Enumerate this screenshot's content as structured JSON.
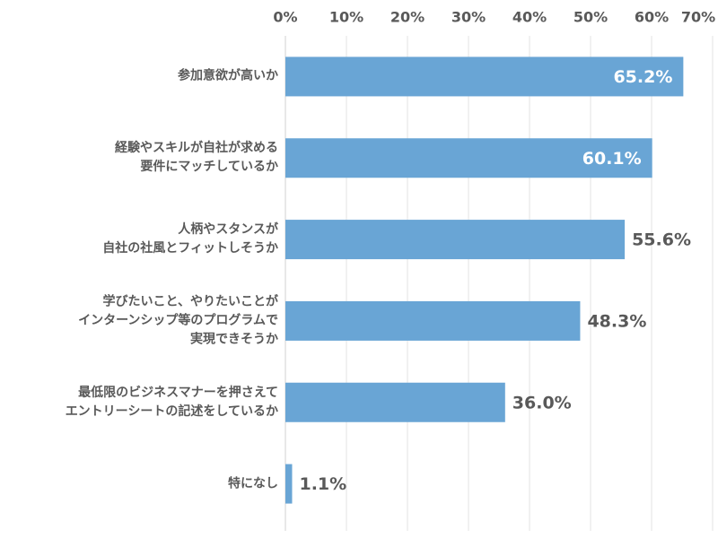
{
  "chart_data": {
    "type": "barh",
    "categories": [
      "参加意欲が高いか",
      "経験やスキルが自社が求める\n要件にマッチしているか",
      "人柄やスタンスが\n自社の社風とフィットしそうか",
      "学びたいこと、やりたいことが\nインターンシップ等のプログラムで\n実現できそうか",
      "最低限のビジネスマナーを押さえて\nエントリーシートの記述をしているか",
      "特になし"
    ],
    "values": [
      65.2,
      60.1,
      55.6,
      48.3,
      36.0,
      1.1
    ],
    "value_labels": [
      "65.2%",
      "60.1%",
      "55.6%",
      "48.3%",
      "36.0%",
      "1.1%"
    ],
    "color": "#69a5d5",
    "xlim": [
      0,
      70
    ],
    "xticks": [
      {
        "value": 0,
        "label": "0%"
      },
      {
        "value": 10,
        "label": "10%"
      },
      {
        "value": 20,
        "label": "20%"
      },
      {
        "value": 30,
        "label": "30%"
      },
      {
        "value": 40,
        "label": "40%"
      },
      {
        "value": 50,
        "label": "50%"
      },
      {
        "value": 60,
        "label": "60%"
      },
      {
        "value": 70,
        "label": "70%"
      }
    ],
    "grid": true
  }
}
